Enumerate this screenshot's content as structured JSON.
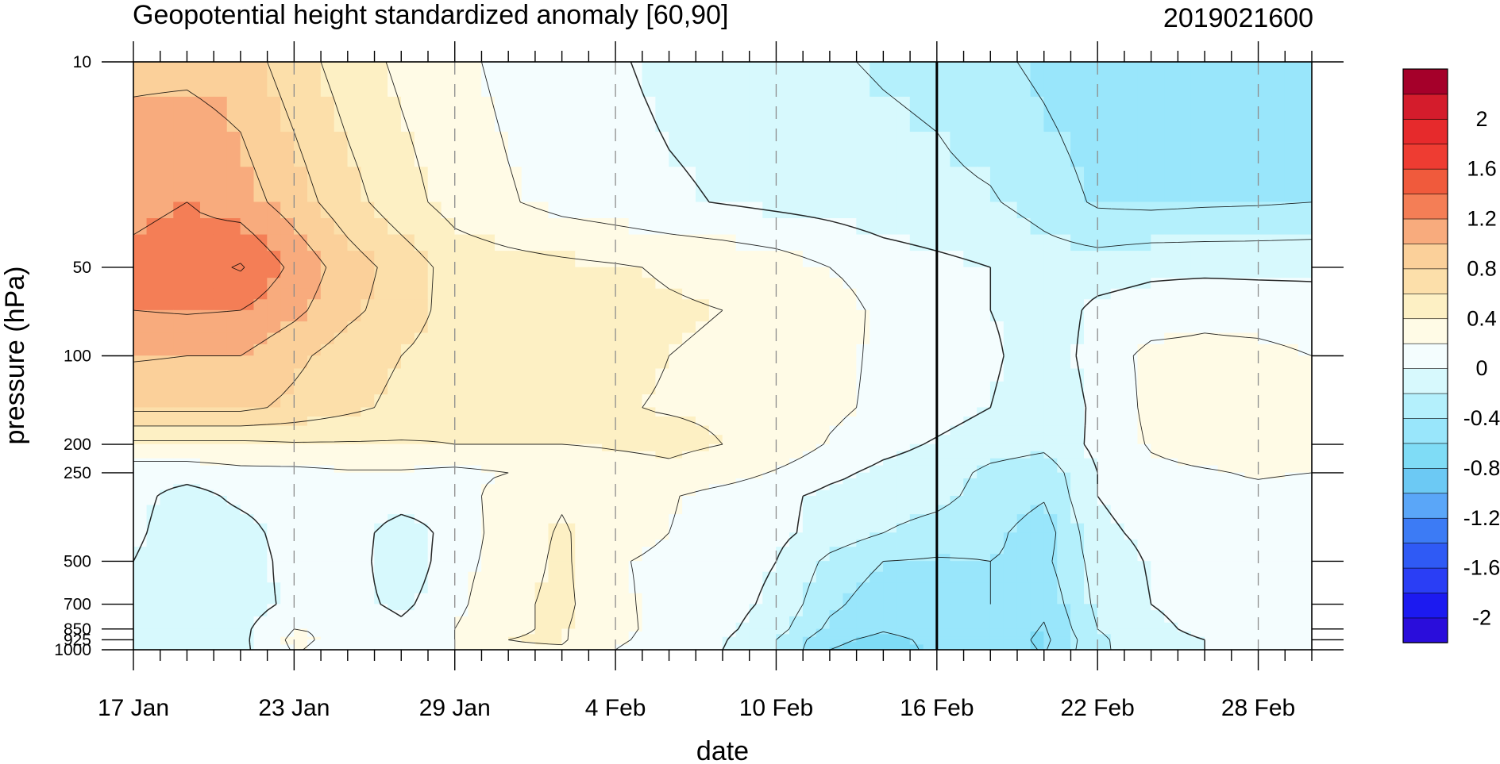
{
  "chart_data": {
    "type": "contour",
    "title": "Geopotential height standardized anomaly [60,90]",
    "right_title": "2019021600",
    "xlabel": "date",
    "ylabel": "pressure (hPa)",
    "x_start_date": "17 Jan",
    "x_range_days": [
      0,
      44
    ],
    "x_ticks": [
      {
        "day": 0,
        "label": "17 Jan"
      },
      {
        "day": 6,
        "label": "23 Jan"
      },
      {
        "day": 12,
        "label": "29 Jan"
      },
      {
        "day": 18,
        "label": "4 Feb"
      },
      {
        "day": 24,
        "label": "10 Feb"
      },
      {
        "day": 30,
        "label": "16 Feb"
      },
      {
        "day": 36,
        "label": "22 Feb"
      },
      {
        "day": 42,
        "label": "28 Feb"
      }
    ],
    "y_scale": "log",
    "y_range": [
      1000,
      10
    ],
    "y_ticks": [
      {
        "value": 10,
        "label": "10"
      },
      {
        "value": 50,
        "label": "50"
      },
      {
        "value": 100,
        "label": "100"
      },
      {
        "value": 200,
        "label": "200"
      },
      {
        "value": 250,
        "label": "250"
      },
      {
        "value": 500,
        "label": "500"
      },
      {
        "value": 700,
        "label": "700"
      },
      {
        "value": 850,
        "label": "850"
      },
      {
        "value": 925,
        "label": "925"
      },
      {
        "value": 1000,
        "label": "1000"
      }
    ],
    "analysis_marker_day": 30,
    "dashed_gridlines_days": [
      6,
      12,
      18,
      24,
      36,
      42
    ],
    "levels": [
      -2.2,
      -2,
      -1.8,
      -1.6,
      -1.4,
      -1.2,
      -1,
      -0.8,
      -0.6,
      -0.4,
      -0.2,
      0,
      0.2,
      0.4,
      0.6,
      0.8,
      1,
      1.2,
      1.4,
      1.6,
      1.8,
      2,
      2.2
    ],
    "colorbar_colors": [
      "#2a0ddb",
      "#1c1af0",
      "#2a3ef5",
      "#2f5af5",
      "#3c7bf5",
      "#5aa6f8",
      "#6cc9f4",
      "#7fdcf6",
      "#99e6fb",
      "#b4f0fc",
      "#d7f9fd",
      "#f4fdfe",
      "#fffbe6",
      "#fdf0c4",
      "#fcdfaa",
      "#fbd09a",
      "#f8ab7d",
      "#f47e56",
      "#f05a3c",
      "#ee3c32",
      "#e62a2c",
      "#d41c2c",
      "#a5002a"
    ],
    "colorbar_labels": [
      {
        "level": 2,
        "label": "2"
      },
      {
        "level": 1.6,
        "label": "1.6"
      },
      {
        "level": 1.2,
        "label": "1.2"
      },
      {
        "level": 0.8,
        "label": "0.8"
      },
      {
        "level": 0.4,
        "label": "0.4"
      },
      {
        "level": 0,
        "label": "0"
      },
      {
        "level": -0.4,
        "label": "-0.4"
      },
      {
        "level": -0.8,
        "label": "-0.8"
      },
      {
        "level": -1.2,
        "label": "-1.2"
      },
      {
        "level": -1.6,
        "label": "-1.6"
      },
      {
        "level": -2,
        "label": "-2"
      }
    ],
    "grid_pressures": [
      10,
      30,
      50,
      70,
      100,
      150,
      200,
      250,
      300,
      400,
      500,
      700,
      850,
      925,
      1000
    ],
    "grid_days": [
      0,
      2,
      4,
      6,
      8,
      10,
      12,
      14,
      16,
      18,
      20,
      22,
      24,
      26,
      28,
      30,
      32,
      34,
      36,
      38,
      40,
      42,
      44
    ],
    "values": [
      [
        0.95,
        0.95,
        0.9,
        0.7,
        0.5,
        0.36,
        0.25,
        0.15,
        0.08,
        0.02,
        -0.05,
        -0.08,
        -0.12,
        -0.18,
        -0.22,
        -0.25,
        -0.35,
        -0.45,
        -0.55,
        -0.58,
        -0.55,
        -0.5,
        -0.5
      ],
      [
        1.15,
        1.2,
        1.1,
        0.9,
        0.68,
        0.48,
        0.32,
        0.22,
        0.13,
        0.08,
        0.03,
        -0.01,
        -0.05,
        -0.08,
        -0.12,
        -0.15,
        -0.18,
        -0.28,
        -0.43,
        -0.45,
        -0.43,
        -0.42,
        -0.4
      ],
      [
        1.25,
        1.3,
        1.42,
        1.15,
        0.9,
        0.72,
        0.52,
        0.48,
        0.45,
        0.42,
        0.38,
        0.35,
        0.3,
        0.2,
        0.1,
        0.05,
        0.0,
        -0.1,
        -0.1,
        -0.05,
        -0.05,
        -0.05,
        -0.05
      ],
      [
        1.2,
        1.22,
        1.2,
        1.05,
        0.85,
        0.7,
        0.52,
        0.5,
        0.48,
        0.45,
        0.42,
        0.4,
        0.36,
        0.3,
        0.15,
        0.1,
        0.0,
        -0.12,
        0.05,
        0.1,
        0.15,
        0.12,
        0.1
      ],
      [
        1.02,
        1.0,
        1.0,
        0.85,
        0.7,
        0.6,
        0.5,
        0.47,
        0.45,
        0.43,
        0.4,
        0.38,
        0.35,
        0.28,
        0.15,
        0.1,
        0.05,
        -0.15,
        0.1,
        0.25,
        0.25,
        0.25,
        0.2
      ],
      [
        0.85,
        0.85,
        0.85,
        0.75,
        0.65,
        0.55,
        0.46,
        0.44,
        0.42,
        0.41,
        0.39,
        0.38,
        0.35,
        0.25,
        0.15,
        0.08,
        0.0,
        -0.18,
        0.05,
        0.25,
        0.3,
        0.28,
        0.25
      ],
      [
        0.35,
        0.35,
        0.35,
        0.38,
        0.38,
        0.38,
        0.4,
        0.4,
        0.4,
        0.42,
        0.44,
        0.4,
        0.35,
        0.18,
        0.06,
        -0.02,
        -0.1,
        -0.15,
        0.05,
        0.22,
        0.3,
        0.3,
        0.25
      ],
      [
        0.1,
        0.1,
        0.15,
        0.15,
        0.18,
        0.18,
        0.15,
        0.2,
        0.25,
        0.32,
        0.36,
        0.3,
        0.18,
        0.05,
        -0.05,
        -0.1,
        -0.25,
        -0.32,
        0.0,
        0.15,
        0.18,
        0.22,
        0.2
      ],
      [
        0.08,
        -0.1,
        0.06,
        0.12,
        0.15,
        0.12,
        0.1,
        0.3,
        0.38,
        0.3,
        0.22,
        0.12,
        0.05,
        -0.05,
        -0.1,
        -0.14,
        -0.28,
        -0.38,
        0.0,
        0.1,
        0.15,
        0.15,
        0.12
      ],
      [
        0.05,
        -0.15,
        -0.1,
        0.12,
        0.12,
        -0.12,
        0.08,
        0.3,
        0.42,
        0.3,
        0.2,
        0.12,
        0.05,
        -0.08,
        -0.2,
        -0.28,
        -0.35,
        -0.5,
        -0.05,
        0.05,
        0.1,
        0.12,
        0.1
      ],
      [
        0.0,
        -0.18,
        -0.15,
        0.1,
        0.12,
        -0.15,
        0.12,
        0.3,
        0.44,
        0.22,
        0.15,
        0.1,
        0.0,
        -0.25,
        -0.4,
        -0.42,
        -0.4,
        -0.45,
        -0.12,
        0.02,
        0.05,
        0.08,
        0.05
      ],
      [
        -0.08,
        -0.12,
        -0.1,
        0.05,
        0.08,
        -0.05,
        0.15,
        0.35,
        0.45,
        0.25,
        0.12,
        0.08,
        -0.05,
        -0.35,
        -0.52,
        -0.42,
        -0.4,
        -0.55,
        -0.15,
        0.0,
        0.03,
        0.05,
        0.05
      ],
      [
        -0.1,
        -0.08,
        -0.05,
        0.2,
        0.18,
        0.05,
        0.2,
        0.38,
        0.42,
        0.26,
        0.12,
        0.05,
        -0.12,
        -0.45,
        -0.58,
        -0.5,
        -0.42,
        -0.62,
        -0.2,
        -0.02,
        0.02,
        0.04,
        0.05
      ],
      [
        -0.12,
        -0.15,
        -0.05,
        0.25,
        0.12,
        0.05,
        0.2,
        0.4,
        0.42,
        0.24,
        0.1,
        0.02,
        -0.2,
        -0.55,
        -0.66,
        -0.55,
        -0.45,
        -0.65,
        -0.25,
        -0.03,
        0.0,
        0.03,
        0.05
      ],
      [
        -0.12,
        -0.2,
        -0.05,
        0.22,
        0.1,
        0.02,
        0.2,
        0.38,
        0.38,
        0.2,
        0.05,
        0.0,
        -0.2,
        -0.6,
        -0.7,
        -0.55,
        -0.45,
        -0.62,
        -0.25,
        -0.05,
        0.0,
        0.02,
        0.05
      ]
    ]
  }
}
